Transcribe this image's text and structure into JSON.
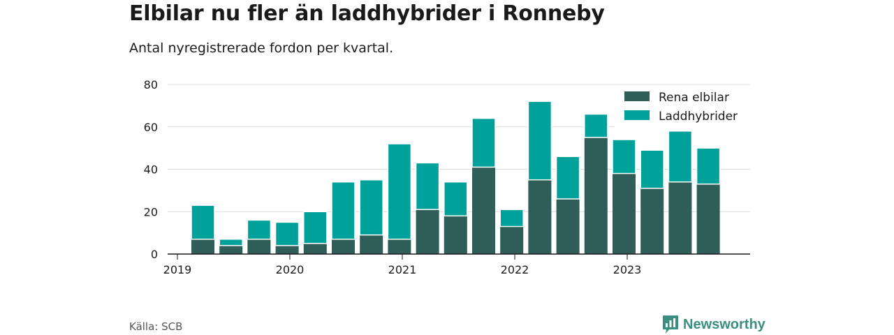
{
  "title": "Elbilar nu fler än laddhybrider i Ronneby",
  "subtitle": "Antal nyregistrerade fordon per kvartal.",
  "source": "Källa: SCB",
  "brand": {
    "name": "Newsworthy",
    "icon": "bar-chart-speech-icon",
    "color": "#3a8f7f"
  },
  "chart_data": {
    "type": "bar",
    "stacked": true,
    "categories": [
      "2019 Q2",
      "2019 Q3",
      "2019 Q4",
      "2020 Q1",
      "2020 Q2",
      "2020 Q3",
      "2020 Q4",
      "2021 Q1",
      "2021 Q2",
      "2021 Q3",
      "2021 Q4",
      "2022 Q1",
      "2022 Q2",
      "2022 Q3",
      "2022 Q4",
      "2023 Q1",
      "2023 Q2",
      "2023 Q3",
      "2023 Q4"
    ],
    "series": [
      {
        "name": "Rena elbilar",
        "color": "#2f5d57",
        "values": [
          7,
          4,
          7,
          4,
          5,
          7,
          9,
          7,
          21,
          18,
          41,
          13,
          35,
          26,
          55,
          38,
          31,
          34,
          33
        ]
      },
      {
        "name": "Laddhybrider",
        "color": "#00a19a",
        "values": [
          16,
          3,
          9,
          11,
          15,
          27,
          26,
          45,
          22,
          16,
          23,
          8,
          37,
          20,
          11,
          16,
          18,
          24,
          17
        ]
      }
    ],
    "x_ticks": [
      "2019",
      "2020",
      "2021",
      "2022",
      "2023"
    ],
    "y_ticks": [
      0,
      20,
      40,
      60,
      80
    ],
    "ylim": [
      0,
      80
    ],
    "xlabel": "",
    "ylabel": "",
    "grid": true,
    "legend": "top-right"
  }
}
